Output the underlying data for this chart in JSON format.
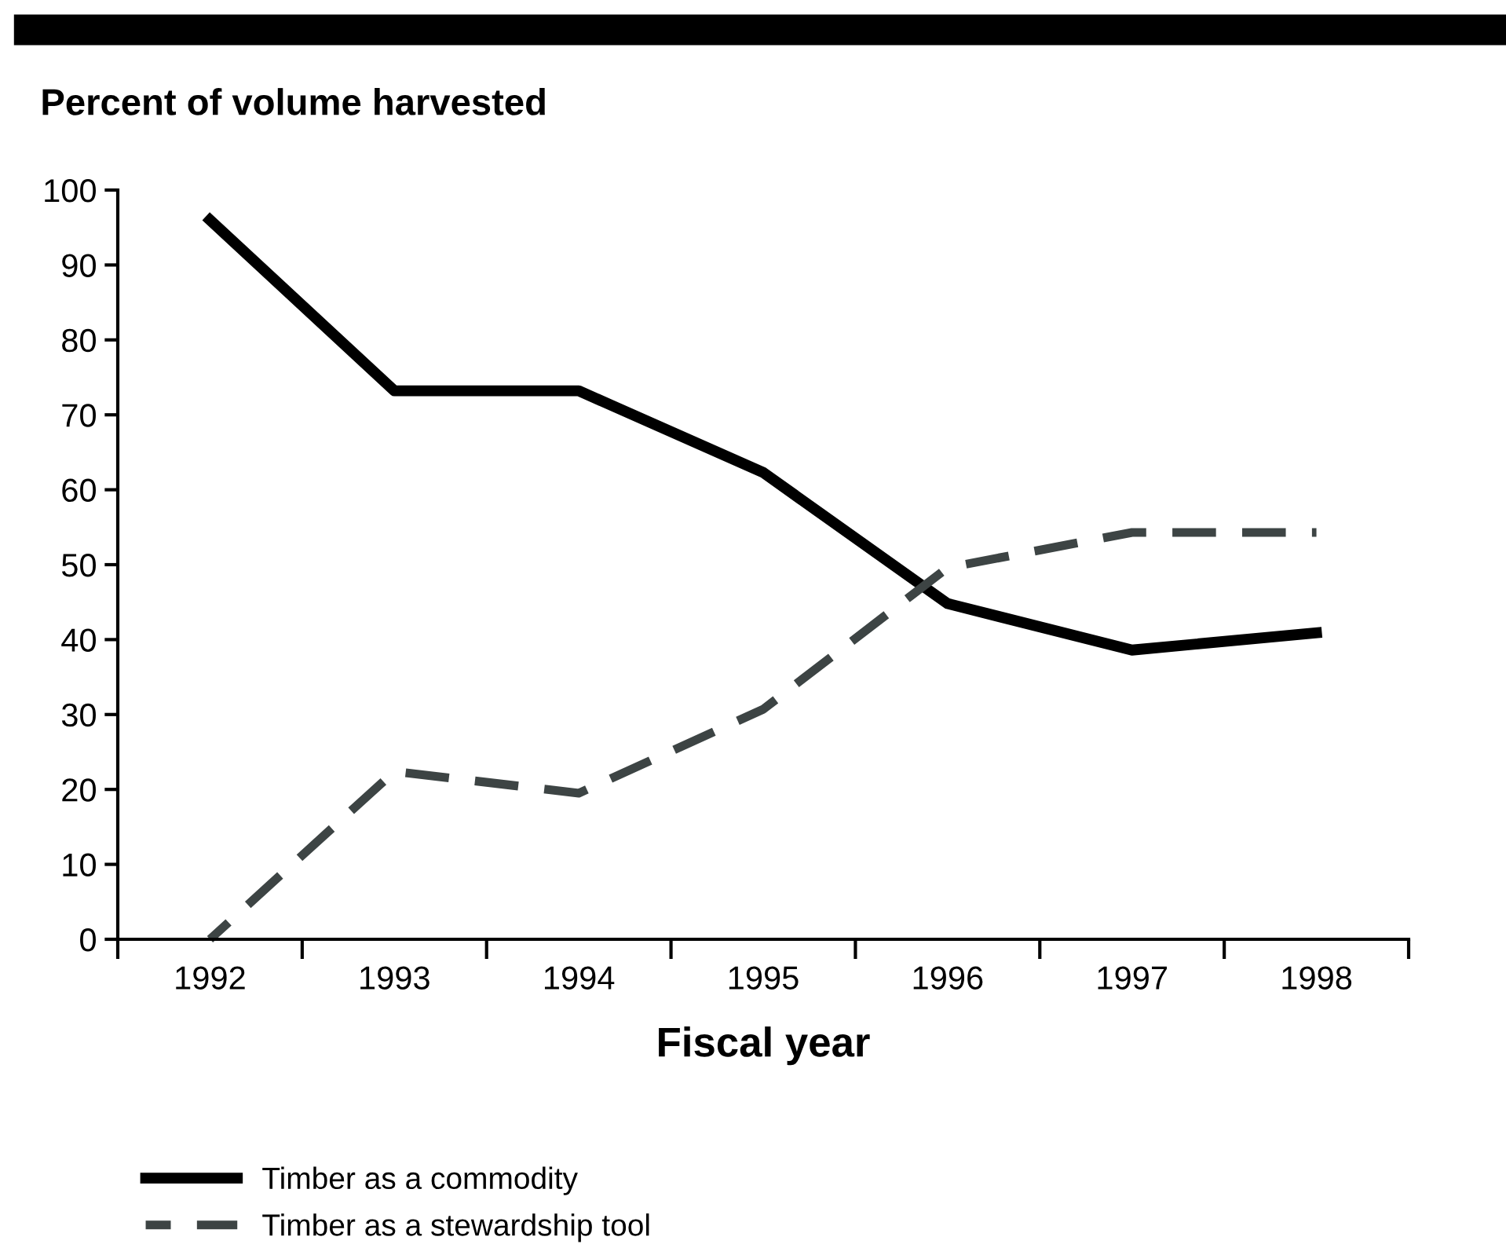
{
  "chart_data": {
    "type": "line",
    "ylabel": "Percent of volume harvested",
    "xlabel": "Fiscal year",
    "categories": [
      "1992",
      "1993",
      "1994",
      "1995",
      "1996",
      "1997",
      "1998"
    ],
    "series": [
      {
        "name": "Timber as a commodity",
        "color": "#000000",
        "line_style": "solid",
        "values": [
          96.0,
          73.2,
          73.2,
          62.3,
          44.8,
          38.6,
          40.9
        ]
      },
      {
        "name": "Timber as a stewardship tool",
        "color": "#3d4444",
        "line_style": "dashed",
        "values": [
          0,
          22.4,
          19.5,
          30.7,
          49.6,
          54.3,
          54.3
        ]
      }
    ],
    "ylim": [
      0,
      100
    ],
    "yticks": [
      0,
      10,
      20,
      30,
      40,
      50,
      60,
      70,
      80,
      90,
      100
    ],
    "grid": false,
    "legend": "bottom",
    "marker": "none"
  }
}
